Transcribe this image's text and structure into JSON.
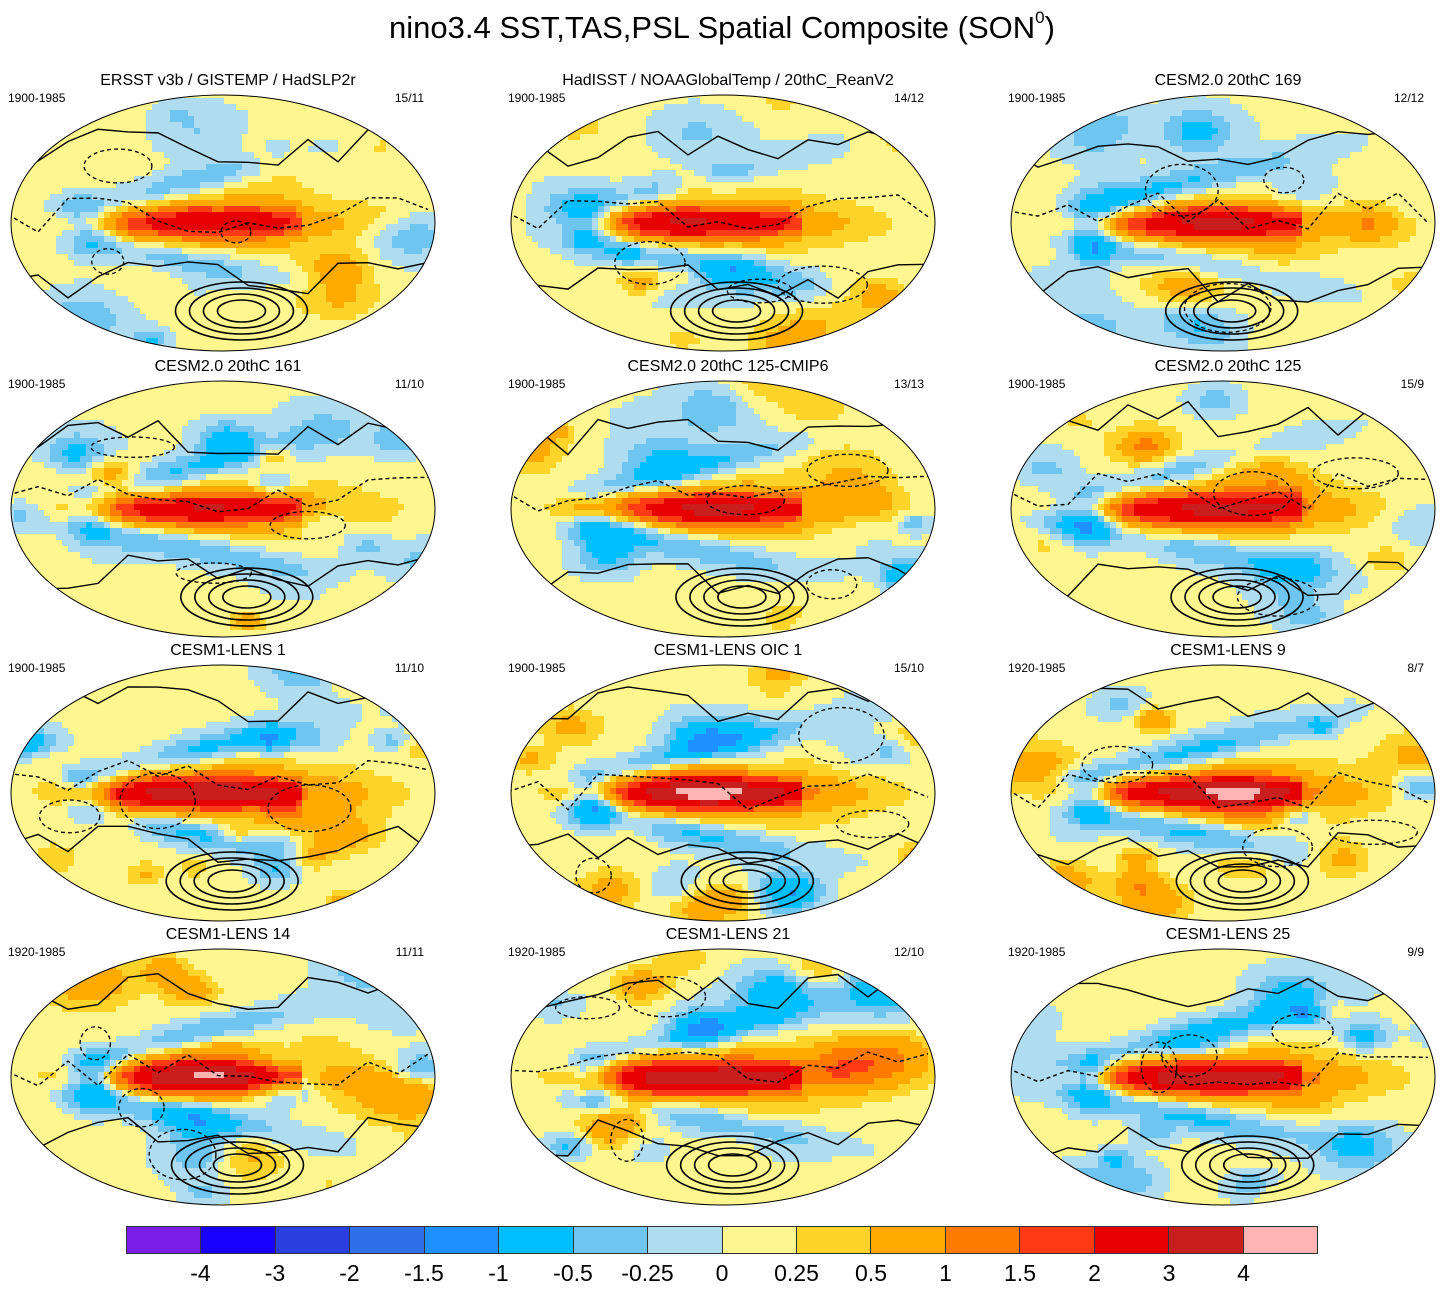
{
  "figure": {
    "title": "nino3.4 SST,TAS,PSL Spatial Composite (SON",
    "title_superscript": "0",
    "title_close": ")"
  },
  "panels": [
    {
      "title": "ERSST v3b / GISTEMP / HadSLP2r",
      "period": "1900-1985",
      "count": "15/11",
      "amp": 0.85,
      "seed": 1
    },
    {
      "title": "HadISST / NOAAGlobalTemp / 20thC_ReanV2",
      "period": "1900-1985",
      "count": "14/12",
      "amp": 0.85,
      "seed": 2
    },
    {
      "title": "CESM2.0 20thC 169",
      "period": "1900-1985",
      "count": "12/12",
      "amp": 1.0,
      "seed": 3
    },
    {
      "title": "CESM2.0 20thC 161",
      "period": "1900-1985",
      "count": "11/10",
      "amp": 1.0,
      "seed": 4
    },
    {
      "title": "CESM2.0 20thC 125-CMIP6",
      "period": "1900-1985",
      "count": "13/13",
      "amp": 1.0,
      "seed": 5
    },
    {
      "title": "CESM2.0 20thC 125",
      "period": "1900-1985",
      "count": "15/9",
      "amp": 1.0,
      "seed": 6
    },
    {
      "title": "CESM1-LENS 1",
      "period": "1900-1985",
      "count": "11/10",
      "amp": 1.2,
      "seed": 7
    },
    {
      "title": "CESM1-LENS OIC 1",
      "period": "1900-1985",
      "count": "15/10",
      "amp": 1.2,
      "seed": 8
    },
    {
      "title": "CESM1-LENS 9",
      "period": "1920-1985",
      "count": "8/7",
      "amp": 1.2,
      "seed": 9
    },
    {
      "title": "CESM1-LENS 14",
      "period": "1920-1985",
      "count": "11/11",
      "amp": 1.2,
      "seed": 10
    },
    {
      "title": "CESM1-LENS 21",
      "period": "1920-1985",
      "count": "12/10",
      "amp": 1.2,
      "seed": 11
    },
    {
      "title": "CESM1-LENS 25",
      "period": "1920-1985",
      "count": "9/9",
      "amp": 1.2,
      "seed": 12
    }
  ],
  "colorbar": {
    "colors": [
      "#7a1fe8",
      "#1a00ff",
      "#2b3fe0",
      "#2f6fe8",
      "#1e90ff",
      "#00bfff",
      "#6ec6f0",
      "#b0dcf0",
      "#fff690",
      "#ffd42a",
      "#ffaa00",
      "#ff7b00",
      "#ff3a14",
      "#e60000",
      "#c81e1e",
      "#ffb4b4"
    ],
    "ticks": [
      "-4",
      "-3",
      "-2",
      "-1.5",
      "-1",
      "-0.5",
      "-0.25",
      "0",
      "0.25",
      "0.5",
      "1",
      "1.5",
      "2",
      "3",
      "4"
    ]
  }
}
